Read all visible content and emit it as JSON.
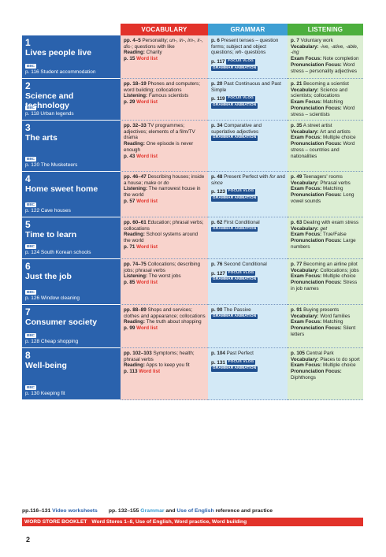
{
  "headers": [
    "VOCABULARY",
    "GRAMMAR",
    "LISTENING"
  ],
  "bbc_label": "BBC",
  "focus_vlog_label": "FOCUS VLOG",
  "grammar_animation_label": "GRAMMAR ANIMATION",
  "units": [
    {
      "num": "1",
      "title": "Lives people live",
      "video": "p. 116 Student accommodation",
      "vocab": {
        "pages": "pp. 4–5",
        "text1": " Personality; ",
        "italic": "un-, in-, im-, ir-, dis-",
        "text2": "; questions with like",
        "reading_label": "Reading:",
        "reading": " Charity",
        "wl_page": "p. 15",
        "wl": " Word list"
      },
      "grammar": {
        "pages": "p. 6",
        "text": " Present tenses – question forms; subject and object questions; ",
        "italic": "wh-",
        "text2": " questions",
        "vlog_page": "p. 117"
      },
      "listening": {
        "pages": "p. 7",
        "text": " Voluntary work",
        "l1": "Vocabulary:",
        "v1": " ",
        "v1i": "-ive, -ative, -able, -ing",
        "l2": "Exam Focus:",
        "v2": " Note completion",
        "l3": "Pronunciation Focus:",
        "v3": " Word stress – personality adjectives"
      }
    },
    {
      "num": "2",
      "title": "Science and technology",
      "video": "p. 118 Urban legends",
      "vocab": {
        "pages": "pp. 18–19",
        "text1": " Phones and computers; word building; collocations",
        "listening_label": "Listening:",
        "listening": " Famous scientists",
        "wl_page": "p. 29",
        "wl": " Word list"
      },
      "grammar": {
        "pages": "p. 20",
        "text": " Past Continuous and Past Simple",
        "vlog_page": "p. 119"
      },
      "listening": {
        "pages": "p. 21",
        "text": " Becoming a scientist",
        "l1": "Vocabulary:",
        "v1": " Science and scientists; collocations",
        "l2": "Exam Focus:",
        "v2": " Matching",
        "l3": "Pronunciation Focus:",
        "v3": " Word stress – scientists"
      }
    },
    {
      "num": "3",
      "title": "The arts",
      "video": "p. 120 The Musketeers",
      "vocab": {
        "pages": "pp. 32–33",
        "text1": " TV programmes; adjectives; elements of a film/TV drama",
        "reading_label": "Reading:",
        "reading": " One episode is never enough",
        "wl_page": "p. 43",
        "wl": " Word list"
      },
      "grammar": {
        "pages": "p. 34",
        "text": " Comparative and superlative adjectives"
      },
      "listening": {
        "pages": "p. 35",
        "text": " A street artist",
        "l1": "Vocabulary:",
        "v1": " Art and artists",
        "l2": "Exam Focus:",
        "v2": " Multiple choice",
        "l3": "Pronunciation Focus:",
        "v3": " Word stress – countries and nationalities"
      }
    },
    {
      "num": "4",
      "title": "Home sweet home",
      "video": "p. 122 Cave houses",
      "vocab": {
        "pages": "pp. 46–47",
        "text1": " Describing houses; inside a house; ",
        "italic": "make",
        "text2": " or ",
        "italic2": "do",
        "listening_label": "Listening:",
        "listening": " The narrowest house in the world",
        "wl_page": "p. 57",
        "wl": " Word list"
      },
      "grammar": {
        "pages": "p. 48",
        "text": " Present Perfect with ",
        "italic": "for",
        "text2": " and ",
        "italic2": "since",
        "vlog_page": "p. 123"
      },
      "listening": {
        "pages": "p. 49",
        "text": " Teenagers' rooms",
        "l1": "Vocabulary:",
        "v1": " Phrasal verbs",
        "l2": "Exam Focus:",
        "v2": " Matching",
        "l3": "Pronunciation Focus:",
        "v3": " Long vowel sounds"
      }
    },
    {
      "num": "5",
      "title": "Time to learn",
      "video": "p. 124 South Korean schools",
      "vocab": {
        "pages": "pp. 60–61",
        "text1": " Education; phrasal verbs; collocations",
        "reading_label": "Reading:",
        "reading": " School systems around the world",
        "wl_page": "p. 71",
        "wl": " Word list"
      },
      "grammar": {
        "pages": "p. 62",
        "text": " First Conditional"
      },
      "listening": {
        "pages": "p. 63",
        "text": " Dealing with exam stress",
        "l1": "Vocabulary:",
        "v1": " ",
        "v1i": "get",
        "l2": "Exam Focus:",
        "v2": " True/False",
        "l3": "Pronunciation Focus:",
        "v3": " Large numbers"
      }
    },
    {
      "num": "6",
      "title": "Just the job",
      "video": "p. 126 Window cleaning",
      "vocab": {
        "pages": "pp. 74–75",
        "text1": " Collocations; describing jobs; phrasal verbs",
        "listening_label": "Listening:",
        "listening": " The worst jobs",
        "wl_page": "p. 85",
        "wl": " Word list"
      },
      "grammar": {
        "pages": "p. 76",
        "text": " Second Conditional",
        "vlog_page": "p. 127"
      },
      "listening": {
        "pages": "p. 77",
        "text": " Becoming an airline pilot",
        "l1": "Vocabulary:",
        "v1": " Collocations; jobs",
        "l2": "Exam Focus:",
        "v2": " Multiple choice",
        "l3": "Pronunciation Focus:",
        "v3": " Stress in job names"
      }
    },
    {
      "num": "7",
      "title": "Consumer society",
      "video": "p. 128 Cheap shopping",
      "vocab": {
        "pages": "pp. 88–89",
        "text1": " Shops and services; clothes and appearance; collocations",
        "reading_label": "Reading:",
        "reading": " The truth about shopping",
        "wl_page": "p. 99",
        "wl": " Word list"
      },
      "grammar": {
        "pages": "p. 90",
        "text": " The Passive"
      },
      "listening": {
        "pages": "p. 91",
        "text": " Buying presents",
        "l1": "Vocabulary:",
        "v1": " Word families",
        "l2": "Exam Focus:",
        "v2": " Matching",
        "l3": "Pronunciation Focus:",
        "v3": " Silent letters"
      }
    },
    {
      "num": "8",
      "title": "Well-being",
      "video": "p. 130 Keeping fit",
      "vocab": {
        "pages": "pp. 102–103",
        "text1": " Symptoms; health; phrasal verbs",
        "reading_label": "Reading:",
        "reading": " Apps to keep you fit",
        "wl_page": "p. 113",
        "wl": " Word list"
      },
      "grammar": {
        "pages": "p. 104",
        "text": " Past Perfect",
        "vlog_page": "p. 131"
      },
      "listening": {
        "pages": "p. 105",
        "text": " Central Park",
        "l1": "Vocabulary:",
        "v1": " Places to do sport",
        "l2": "Exam Focus:",
        "v2": " Multiple choice",
        "l3": "Pronunciation Focus:",
        "v3": " Diphthongs"
      }
    }
  ],
  "footer": {
    "video_pages": "pp.116–131",
    "video_label": " Video worksheets",
    "ref_pages": "pp. 132–155",
    "grammar_word": " Grammar",
    "ref_rest1": " and ",
    "ref_use": "Use of English",
    "ref_rest2": " reference and practice",
    "booklet_label": "WORD STORE BOOKLET",
    "booklet_text": "Word Stores 1–8, Use of English, Word practice, Word building"
  },
  "page_number": "2"
}
